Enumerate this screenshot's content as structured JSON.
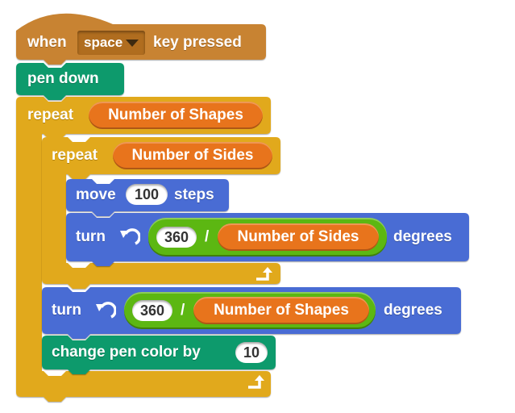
{
  "palette": {
    "events": "#c88330",
    "events_dark": "#a8691f",
    "pen": "#0e9a6c",
    "control": "#e1a91a",
    "motion": "#4a6cd4",
    "variable": "#ee7d16",
    "operator": "#5cb712"
  },
  "script": {
    "hat": {
      "when_label": "when",
      "key_value": "space",
      "pressed_label": "key pressed"
    },
    "pen_down": {
      "label": "pen down"
    },
    "outer_repeat": {
      "label": "repeat",
      "count_variable": "Number of Shapes"
    },
    "inner_repeat": {
      "label": "repeat",
      "count_variable": "Number of Sides"
    },
    "move": {
      "label": "move",
      "steps_value": "100",
      "steps_label": "steps"
    },
    "turn_inner": {
      "label": "turn",
      "icon": "rotate-left-icon",
      "dividend": "360",
      "operator": "/",
      "divisor_variable": "Number of Sides",
      "degrees_label": "degrees"
    },
    "turn_outer": {
      "label": "turn",
      "icon": "rotate-left-icon",
      "dividend": "360",
      "operator": "/",
      "divisor_variable": "Number of Shapes",
      "degrees_label": "degrees"
    },
    "change_pen_color": {
      "label": "change pen color by",
      "value": "10"
    },
    "loop_end_icon": "loop-arrow-icon"
  }
}
